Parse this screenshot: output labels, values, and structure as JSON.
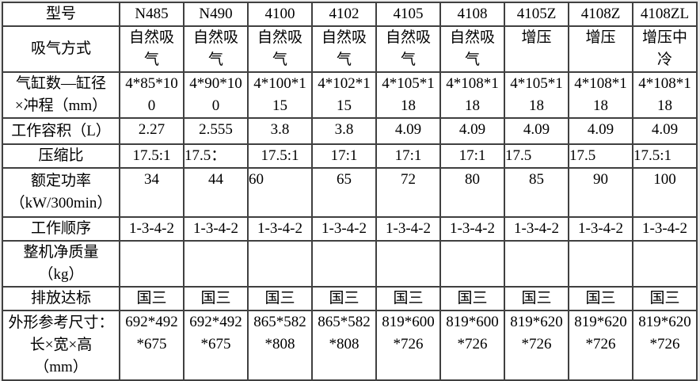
{
  "style": {
    "page_background": "#e9e9e9",
    "table_background": "#ffffff",
    "border_color": "#404040",
    "text_color": "#000000"
  },
  "table": {
    "rows": [
      {
        "key": "model",
        "label": "型号",
        "values": [
          "N485",
          "N490",
          "4100",
          "4102",
          "4105",
          "4108",
          "4105Z",
          "4108Z",
          "4108ZL"
        ]
      },
      {
        "key": "intake",
        "label": "吸气方式",
        "values": [
          "自然吸\n气",
          "自然吸\n气",
          "自然吸\n气",
          "自然吸\n气",
          "自然吸\n气",
          "自然吸\n气",
          "增压",
          "增压",
          "增压中\n冷"
        ]
      },
      {
        "key": "bore-stroke",
        "label": "气缸数—缸径\n×冲程（mm）",
        "values": [
          "4*85*10\n0",
          "4*90*10\n0",
          "4*100*1\n15",
          "4*102*1\n15",
          "4*105*1\n18",
          "4*108*1\n18",
          "4*105*1\n18",
          "4*108*1\n18",
          "4*108*1\n18"
        ]
      },
      {
        "key": "displacement",
        "label": "工作容积（L）",
        "values": [
          "2.27",
          "2.555",
          "3.8",
          "3.8",
          "4.09",
          "4.09",
          "4.09",
          "4.09",
          "4.09"
        ]
      },
      {
        "key": "compression",
        "label": "压缩比",
        "values": [
          "17.5:1",
          "17.5：",
          "17.5:1",
          "17:1",
          "17:1",
          "17:1",
          "17.5",
          "17.5",
          "17.5:1"
        ]
      },
      {
        "key": "rated-power",
        "label": "额定功率\n（kW/300min）",
        "values": [
          "34",
          "44",
          "60",
          "65",
          "72",
          "80",
          "85",
          "90",
          "100"
        ]
      },
      {
        "key": "firing-order",
        "label": "工作顺序",
        "values": [
          "1-3-4-2",
          "1-3-4-2",
          "1-3-4-2",
          "1-3-4-2",
          "1-3-4-2",
          "1-3-4-2",
          "1-3-4-2",
          "1-3-4-2",
          "1-3-4-2"
        ]
      },
      {
        "key": "net-weight",
        "label": "整机净质量\n（kg）",
        "values": [
          "",
          "",
          "",
          "",
          "",
          "",
          "",
          "",
          ""
        ]
      },
      {
        "key": "emission",
        "label": "排放达标",
        "values": [
          "国三",
          "国三",
          "国三",
          "国三",
          "国三",
          "国三",
          "国三",
          "国三",
          "国三"
        ]
      },
      {
        "key": "dimensions",
        "label": "外形参考尺寸：\n长×宽×高\n（mm）",
        "values": [
          "692*492\n*675",
          "692*492\n*675",
          "865*582\n*808",
          "865*582\n*808",
          "819*600\n*726",
          "819*600\n*726",
          "819*620\n*726",
          "819*620\n*726",
          "819*620\n*726"
        ]
      }
    ]
  }
}
